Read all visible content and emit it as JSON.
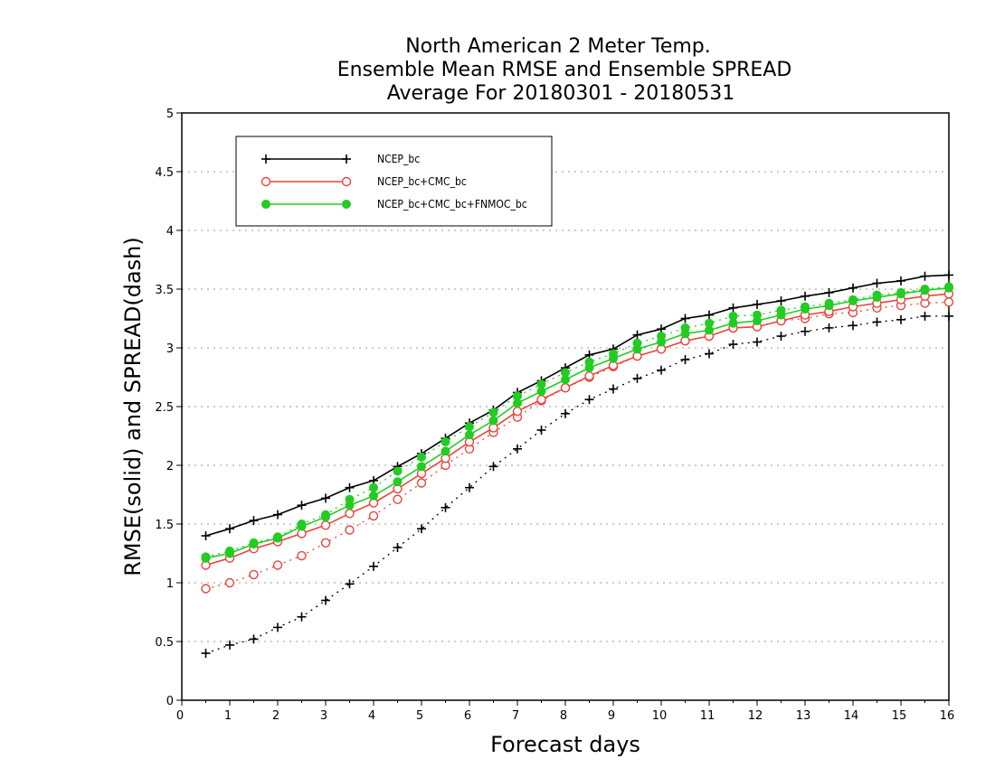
{
  "chart_data": {
    "type": "line",
    "title": [
      "North American 2 Meter Temp.",
      "Ensemble Mean RMSE and Ensemble SPREAD",
      "Average For 20180301 - 20180531"
    ],
    "xlabel": "Forecast days",
    "ylabel": "RMSE(solid)  and  SPREAD(dash)",
    "xlim": [
      0,
      16
    ],
    "ylim": [
      0,
      5
    ],
    "xticks": [
      "0",
      "1",
      "2",
      "3",
      "4",
      "5",
      "6",
      "7",
      "8",
      "9",
      "10",
      "11",
      "12",
      "13",
      "14",
      "15",
      "16"
    ],
    "yticks": [
      "0",
      "0.5",
      "1",
      "1.5",
      "2",
      "2.5",
      "3",
      "3.5",
      "4",
      "4.5",
      "5"
    ],
    "grid": "horizontal dotted",
    "legend_position": "top-left",
    "x": [
      0.5,
      1,
      1.5,
      2,
      2.5,
      3,
      3.5,
      4,
      4.5,
      5,
      5.5,
      6,
      6.5,
      7,
      7.5,
      8,
      8.5,
      9,
      9.5,
      10,
      10.5,
      11,
      11.5,
      12,
      12.5,
      13,
      13.5,
      14,
      14.5,
      15,
      15.5,
      16
    ],
    "series": [
      {
        "name": "NCEP_bc",
        "color": "#000000",
        "marker": "plus",
        "rmse": [
          1.4,
          1.46,
          1.53,
          1.58,
          1.66,
          1.72,
          1.81,
          1.87,
          1.99,
          2.1,
          2.23,
          2.36,
          2.47,
          2.62,
          2.72,
          2.83,
          2.94,
          2.99,
          3.11,
          3.16,
          3.25,
          3.28,
          3.34,
          3.37,
          3.4,
          3.44,
          3.47,
          3.51,
          3.55,
          3.57,
          3.61,
          3.62
        ],
        "spread": [
          0.4,
          0.47,
          0.52,
          0.62,
          0.71,
          0.85,
          0.99,
          1.14,
          1.3,
          1.46,
          1.64,
          1.81,
          1.99,
          2.14,
          2.3,
          2.44,
          2.56,
          2.65,
          2.74,
          2.81,
          2.9,
          2.95,
          3.03,
          3.05,
          3.1,
          3.14,
          3.17,
          3.19,
          3.22,
          3.24,
          3.27,
          3.27
        ]
      },
      {
        "name": "NCEP_bc+CMC_bc",
        "color": "#e8453c",
        "marker": "open-circle",
        "rmse": [
          1.15,
          1.21,
          1.29,
          1.35,
          1.42,
          1.49,
          1.59,
          1.68,
          1.8,
          1.93,
          2.06,
          2.2,
          2.32,
          2.46,
          2.56,
          2.66,
          2.76,
          2.85,
          2.93,
          2.99,
          3.06,
          3.1,
          3.17,
          3.18,
          3.23,
          3.28,
          3.31,
          3.35,
          3.38,
          3.41,
          3.44,
          3.46
        ],
        "spread": [
          0.95,
          1.0,
          1.07,
          1.15,
          1.23,
          1.34,
          1.45,
          1.57,
          1.71,
          1.85,
          2.0,
          2.14,
          2.28,
          2.41,
          2.55,
          2.66,
          2.75,
          2.84,
          2.93,
          2.99,
          3.06,
          3.1,
          3.17,
          3.18,
          3.23,
          3.25,
          3.29,
          3.3,
          3.34,
          3.36,
          3.38,
          3.39
        ]
      },
      {
        "name": "NCEP_bc+CMC_bc+FNMOC_bc",
        "color": "#22cc22",
        "marker": "filled-circle",
        "rmse": [
          1.21,
          1.25,
          1.33,
          1.38,
          1.48,
          1.56,
          1.66,
          1.74,
          1.86,
          1.99,
          2.12,
          2.26,
          2.38,
          2.53,
          2.63,
          2.73,
          2.83,
          2.91,
          2.99,
          3.05,
          3.12,
          3.15,
          3.21,
          3.23,
          3.28,
          3.33,
          3.36,
          3.4,
          3.43,
          3.46,
          3.49,
          3.51
        ],
        "spread": [
          1.22,
          1.27,
          1.34,
          1.39,
          1.5,
          1.58,
          1.71,
          1.81,
          1.95,
          2.07,
          2.2,
          2.33,
          2.45,
          2.59,
          2.69,
          2.79,
          2.88,
          2.95,
          3.04,
          3.1,
          3.17,
          3.21,
          3.27,
          3.28,
          3.32,
          3.35,
          3.38,
          3.41,
          3.45,
          3.47,
          3.5,
          3.52
        ]
      }
    ]
  }
}
